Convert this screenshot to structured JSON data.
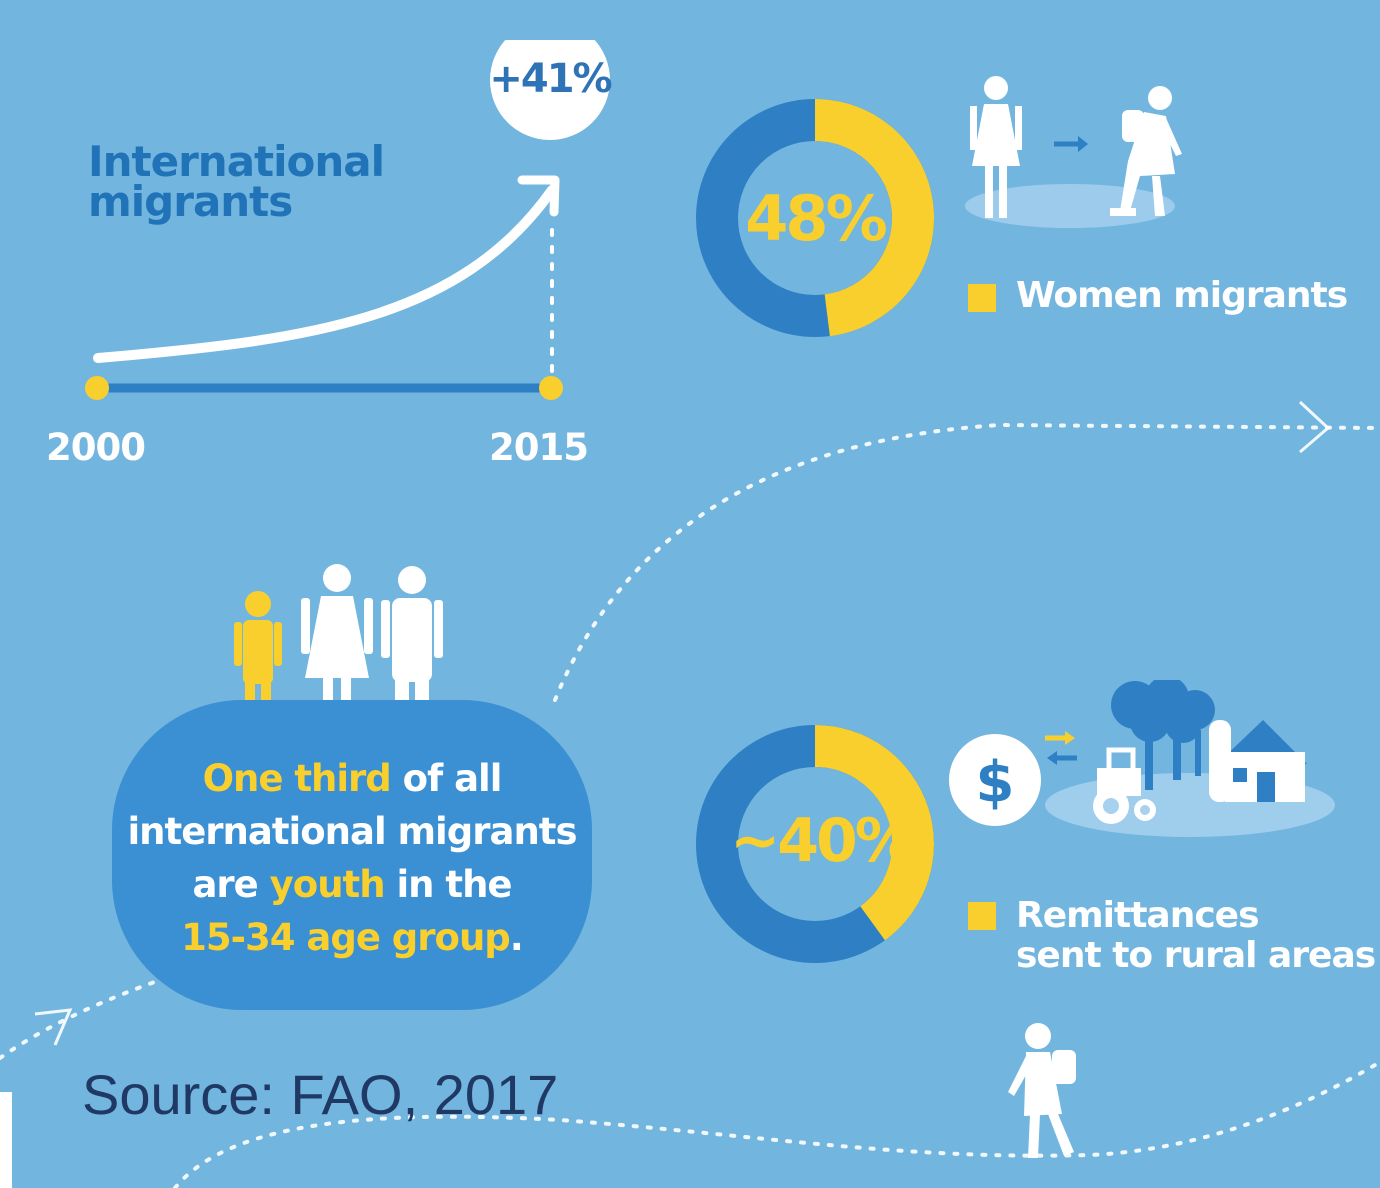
{
  "growth": {
    "title_line1": "International",
    "title_line2": "migrants",
    "start_year": "2000",
    "end_year": "2015",
    "change_label": "+41%"
  },
  "women": {
    "label": "48%",
    "legend": "Women migrants"
  },
  "youth": {
    "highlight1": "One third",
    "text1": " of all",
    "text2": "international migrants",
    "text3a": "are ",
    "highlight2": "youth",
    "text3b": " in the",
    "highlight3": "15-34 age group",
    "text4": "."
  },
  "remittances": {
    "label": "~40%",
    "legend_line1": "Remittances",
    "legend_line2": "sent to rural areas",
    "currency_symbol": "$"
  },
  "source": "Source: FAO, 2017",
  "colors": {
    "background": "#72b5df",
    "dark_blue": "#2e7fc4",
    "yellow": "#f9cf2d",
    "title_blue": "#2173b8",
    "source_text": "#1f3864"
  },
  "chart_data": [
    {
      "type": "line",
      "title": "International migrants",
      "x": [
        "2000",
        "2015"
      ],
      "annotation": "+41%",
      "change_percent": 41
    },
    {
      "type": "pie",
      "style": "donut",
      "label": "48%",
      "slices": [
        {
          "name": "Women migrants",
          "value": 48,
          "color": "#f9cf2d"
        },
        {
          "name": "",
          "value": 52,
          "color": "#2e7fc4"
        }
      ]
    },
    {
      "type": "pie",
      "style": "donut",
      "label": "~40%",
      "slices": [
        {
          "name": "Remittances sent to rural areas",
          "value": 40,
          "color": "#f9cf2d"
        },
        {
          "name": "",
          "value": 60,
          "color": "#2e7fc4"
        }
      ]
    }
  ]
}
